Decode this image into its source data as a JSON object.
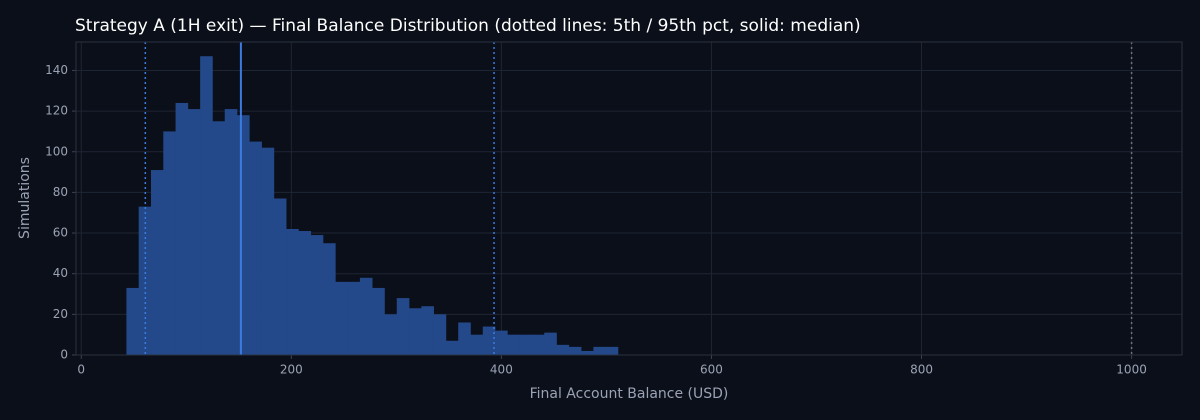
{
  "chart_data": {
    "type": "histogram",
    "title": "Strategy A (1H exit) — Final Balance Distribution (dotted lines: 5th / 95th pct, solid: median)",
    "xlabel": "Final Account Balance (USD)",
    "ylabel": "Simulations",
    "bins": [
      43,
      54.7,
      66.4,
      78.1,
      89.8,
      101.5,
      113.2,
      124.9,
      136.6,
      148.3,
      160,
      171.7,
      183.4,
      195.1,
      206.8,
      218.5,
      230.2,
      241.9,
      253.6,
      265.3,
      277,
      288.7,
      300.4,
      312.1,
      323.8,
      335.5,
      347.2,
      358.9,
      370.6,
      382.3,
      394,
      405.7,
      417.4,
      429.1,
      440.8,
      452.5,
      464.2,
      475.9,
      487.6,
      499.3,
      511
    ],
    "counts": [
      33,
      73,
      91,
      110,
      124,
      121,
      147,
      115,
      121,
      118,
      105,
      102,
      77,
      62,
      61,
      59,
      55,
      36,
      36,
      38,
      33,
      20,
      28,
      23,
      24,
      20,
      7,
      16,
      10,
      14,
      12,
      10,
      10,
      10,
      11,
      5,
      4,
      2,
      4,
      4
    ],
    "color": "#24498a",
    "reference_lines": [
      {
        "value": 61,
        "style": "dotted",
        "color": "#3b7be0"
      },
      {
        "value": 152,
        "style": "solid",
        "color": "#3b7be0"
      },
      {
        "value": 393,
        "style": "dotted",
        "color": "#3b7be0"
      },
      {
        "value": 1000,
        "style": "dotted",
        "color": "#6b7280"
      }
    ],
    "xlim": [
      -5,
      1048
    ],
    "ylim": [
      0,
      154
    ],
    "xticks": [
      0,
      200,
      400,
      600,
      800,
      1000
    ],
    "yticks": [
      0,
      20,
      40,
      60,
      80,
      100,
      120,
      140
    ],
    "grid": true
  }
}
